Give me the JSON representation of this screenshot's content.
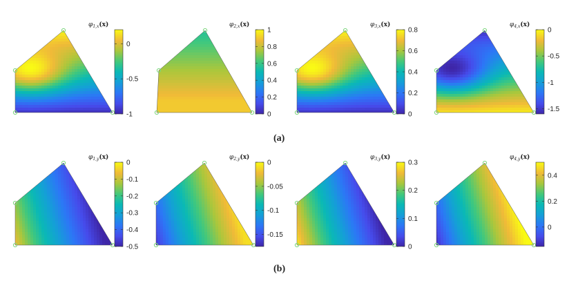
{
  "figure": {
    "row_labels": [
      "(a)",
      "(b)"
    ],
    "colormap": "parula",
    "node_marker_color": "#7CD67C"
  },
  "chart_data": [
    {
      "type": "heatmap",
      "row": 0,
      "col": 0,
      "title": "φ1,x(x)",
      "title_base": "φ",
      "title_sub": "1,x",
      "title_arg": "(x)",
      "cbar_ticks": [
        "0",
        "-0.5",
        "-1"
      ],
      "cbar_values": [
        0,
        -0.5,
        -1
      ],
      "clim": [
        -1,
        0.2
      ],
      "domain": "pentagon",
      "field": {
        "type": "ax",
        "vmin": -1.0,
        "vmax": 0.2,
        "hot": [
          0.3,
          0.35
        ],
        "hotval": 0.2
      }
    },
    {
      "type": "heatmap",
      "row": 0,
      "col": 1,
      "title": "φ2,x(x)",
      "title_base": "φ",
      "title_sub": "2,x",
      "title_arg": "(x)",
      "cbar_ticks": [
        "1",
        "0.8",
        "0.6",
        "0.4",
        "0.2",
        "0"
      ],
      "cbar_values": [
        1,
        0.8,
        0.6,
        0.4,
        0.2,
        0
      ],
      "clim": [
        0,
        1
      ],
      "domain": "triangle",
      "field": {
        "type": "bx",
        "vmin": 0.55,
        "vmax": 0.9
      }
    },
    {
      "type": "heatmap",
      "row": 0,
      "col": 2,
      "title": "φ3,x(x)",
      "title_base": "φ",
      "title_sub": "3,x",
      "title_arg": "(x)",
      "cbar_ticks": [
        "0.8",
        "0.6",
        "0.4",
        "0.2",
        "0"
      ],
      "cbar_values": [
        0.8,
        0.6,
        0.4,
        0.2,
        0
      ],
      "clim": [
        0,
        0.8
      ],
      "domain": "pentagon",
      "field": {
        "type": "ax",
        "vmin": 0.0,
        "vmax": 0.8,
        "hot": [
          0.3,
          0.35
        ],
        "hotval": 0.8
      }
    },
    {
      "type": "heatmap",
      "row": 0,
      "col": 3,
      "title": "φ4,x(x)",
      "title_base": "φ",
      "title_sub": "4,x",
      "title_arg": "(x)",
      "cbar_ticks": [
        "0",
        "-0.5",
        "-1",
        "-1.5"
      ],
      "cbar_values": [
        0,
        -0.5,
        -1,
        -1.5
      ],
      "clim": [
        -1.6,
        0
      ],
      "domain": "pentagon",
      "field": {
        "type": "ax_inv",
        "vmin": -1.6,
        "vmax": 0.0,
        "hot": [
          0.3,
          0.35
        ],
        "hotval": -1.6
      }
    },
    {
      "type": "heatmap",
      "row": 1,
      "col": 0,
      "title": "φ1,y(x)",
      "title_base": "φ",
      "title_sub": "1,y",
      "title_arg": "(x)",
      "cbar_ticks": [
        "0",
        "-0.1",
        "-0.2",
        "-0.3",
        "-0.4",
        "-0.5"
      ],
      "cbar_values": [
        0,
        -0.1,
        -0.2,
        -0.3,
        -0.4,
        -0.5
      ],
      "clim": [
        -0.5,
        0
      ],
      "domain": "pentagon",
      "field": {
        "type": "by",
        "vmin": -0.5,
        "vmax": 0.0,
        "hotval": -0.05,
        "lowval": -0.5
      }
    },
    {
      "type": "heatmap",
      "row": 1,
      "col": 1,
      "title": "φ2,y(x)",
      "title_base": "φ",
      "title_sub": "2,y",
      "title_arg": "(x)",
      "cbar_ticks": [
        "0",
        "-0.05",
        "-0.1",
        "-0.15"
      ],
      "cbar_values": [
        0,
        -0.05,
        -0.1,
        -0.15
      ],
      "clim": [
        -0.175,
        0
      ],
      "domain": "pentagon",
      "field": {
        "type": "by",
        "vmin": -0.175,
        "vmax": 0.0,
        "hotval": -0.17,
        "lowval": -0.01
      }
    },
    {
      "type": "heatmap",
      "row": 1,
      "col": 2,
      "title": "φ3,y(x)",
      "title_base": "φ",
      "title_sub": "3,y",
      "title_arg": "(x)",
      "cbar_ticks": [
        "0.3",
        "0.2",
        "0.1",
        "0"
      ],
      "cbar_values": [
        0.3,
        0.2,
        0.1,
        0
      ],
      "clim": [
        0,
        0.3
      ],
      "domain": "pentagon",
      "field": {
        "type": "by",
        "vmin": 0.0,
        "vmax": 0.3,
        "hotval": 0.3,
        "lowval": 0.0
      }
    },
    {
      "type": "heatmap",
      "row": 1,
      "col": 3,
      "title": "φ4,y(x)",
      "title_base": "φ",
      "title_sub": "4,y",
      "title_arg": "(x)",
      "cbar_ticks": [
        "0.4",
        "0.2",
        "0"
      ],
      "cbar_values": [
        0.4,
        0.2,
        0
      ],
      "clim": [
        -0.15,
        0.5
      ],
      "domain": "pentagon",
      "field": {
        "type": "by",
        "vmin": -0.15,
        "vmax": 0.5,
        "hotval": -0.15,
        "lowval": 0.5
      }
    }
  ]
}
